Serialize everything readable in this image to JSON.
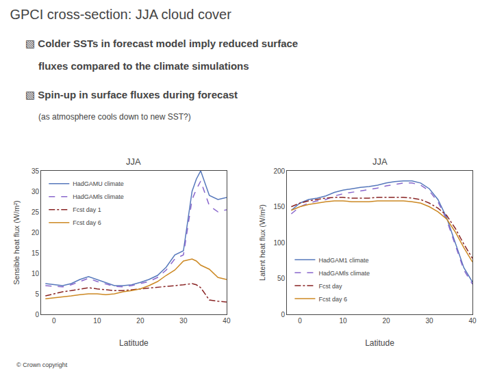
{
  "title": "GPCI cross-section: JJA cloud cover",
  "annotations": [
    "▧ Colder SSTs in forecast model imply reduced surface",
    "fluxes compared to the climate simulations",
    "▧ Spin-up in surface fluxes during forecast",
    "(as atmosphere cools down to new SST?)",
    "© Crown copyright"
  ],
  "chart_data": [
    {
      "type": "line",
      "title": "JJA",
      "x_label": "Latitude",
      "y_label": "Sensible heat flux (W/m²)",
      "x": [
        -2,
        0,
        2,
        4,
        6,
        8,
        10,
        12,
        14,
        16,
        18,
        20,
        22,
        24,
        26,
        28,
        30,
        32,
        33,
        34,
        36,
        38,
        40
      ],
      "series": [
        {
          "name": "HadGAMU climate",
          "color": "#5577bb",
          "line_style": "solid",
          "values": [
            7.5,
            7.2,
            7.0,
            7.5,
            8.5,
            9.2,
            8.5,
            7.8,
            7.0,
            7.0,
            7.2,
            7.8,
            8.5,
            9.5,
            11.5,
            14.5,
            15.5,
            30.0,
            33.0,
            35.0,
            29.0,
            28.0,
            28.5
          ]
        },
        {
          "name": "HadGAMls climate",
          "color": "#8866cc",
          "line_style": "dash",
          "values": [
            7.0,
            6.8,
            6.7,
            7.2,
            8.0,
            8.8,
            8.0,
            7.4,
            6.8,
            6.7,
            7.0,
            7.5,
            8.0,
            9.0,
            10.8,
            13.5,
            14.5,
            28.0,
            30.5,
            32.5,
            26.5,
            25.0,
            25.5
          ]
        },
        {
          "name": "Fcst day 1",
          "color": "#882222",
          "line_style": "dashdot",
          "values": [
            4.5,
            5.0,
            5.5,
            5.8,
            6.2,
            6.5,
            6.2,
            6.0,
            5.8,
            5.8,
            6.0,
            6.2,
            6.3,
            6.5,
            6.8,
            7.0,
            7.2,
            7.5,
            7.2,
            6.5,
            3.5,
            3.2,
            3.0
          ]
        },
        {
          "name": "Fcst day 6",
          "color": "#cc8822",
          "line_style": "solid",
          "values": [
            3.8,
            4.0,
            4.2,
            4.5,
            4.8,
            5.0,
            5.0,
            4.8,
            5.0,
            5.5,
            5.8,
            6.2,
            7.0,
            8.0,
            9.5,
            10.8,
            13.0,
            13.5,
            13.0,
            12.0,
            11.0,
            9.0,
            8.5
          ]
        }
      ],
      "xlim": [
        -3,
        40
      ],
      "ylim": [
        0,
        35
      ],
      "xticks": [
        0,
        10,
        20,
        30,
        40
      ],
      "yticks": [
        0,
        5,
        10,
        15,
        20,
        25,
        30,
        35
      ],
      "grid": false,
      "legend": "upper left"
    },
    {
      "type": "line",
      "title": "JJA",
      "x_label": "Latitude",
      "y_label": "Latent heat flux (W/m²)",
      "x": [
        -2,
        0,
        2,
        4,
        6,
        8,
        10,
        12,
        14,
        16,
        18,
        20,
        22,
        24,
        26,
        28,
        30,
        32,
        34,
        36,
        38,
        40
      ],
      "series": [
        {
          "name": "HadGAM1 climate",
          "color": "#5577bb",
          "line_style": "solid",
          "values": [
            145,
            155,
            160,
            162,
            165,
            170,
            173,
            175,
            177,
            178,
            180,
            183,
            185,
            186,
            186,
            183,
            175,
            160,
            135,
            100,
            65,
            45
          ]
        },
        {
          "name": "HadGAMls climate",
          "color": "#8866cc",
          "line_style": "dash",
          "values": [
            140,
            150,
            155,
            158,
            160,
            165,
            168,
            170,
            172,
            174,
            176,
            179,
            181,
            183,
            183,
            180,
            172,
            157,
            132,
            97,
            62,
            42
          ]
        },
        {
          "name": "Fcst day",
          "color": "#882222",
          "line_style": "dashdot",
          "values": [
            150,
            155,
            158,
            160,
            162,
            163,
            163,
            162,
            162,
            162,
            163,
            163,
            163,
            163,
            162,
            160,
            155,
            148,
            138,
            120,
            98,
            78
          ]
        },
        {
          "name": "Fcst day 6",
          "color": "#cc8822",
          "line_style": "solid",
          "values": [
            145,
            150,
            153,
            155,
            157,
            158,
            158,
            157,
            157,
            157,
            158,
            158,
            158,
            158,
            157,
            155,
            150,
            143,
            133,
            115,
            93,
            73
          ]
        }
      ],
      "xlim": [
        -3,
        40
      ],
      "ylim": [
        0,
        200
      ],
      "xticks": [
        0,
        10,
        20,
        30,
        40
      ],
      "yticks": [
        0,
        50,
        100,
        150,
        200
      ],
      "grid": false,
      "legend": "lower left"
    }
  ]
}
